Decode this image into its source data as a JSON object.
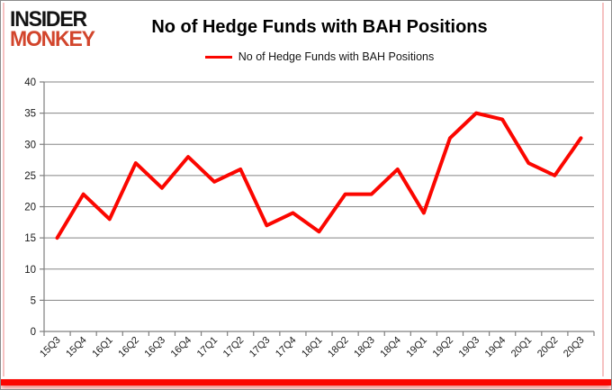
{
  "logo": {
    "line1": "INSIDER",
    "line2": "MONKEY"
  },
  "header": {
    "title": "No of Hedge Funds with BAH Positions"
  },
  "legend": {
    "label": "No of Hedge Funds with BAH Positions"
  },
  "colors": {
    "series_red": "#fb0600",
    "logo_red": "#d2452c",
    "logo_black": "#131313",
    "grid_gray": "#858585",
    "axis_gray": "#7f7f7f",
    "border_pink": "#f6c2c2",
    "bottom_bar_red": "#fb0600"
  },
  "chart_data": {
    "type": "line",
    "title": "No of Hedge Funds with BAH Positions",
    "xlabel": "",
    "ylabel": "",
    "categories": [
      "15Q3",
      "15Q4",
      "16Q1",
      "16Q2",
      "16Q3",
      "16Q4",
      "17Q1",
      "17Q2",
      "17Q3",
      "17Q4",
      "18Q1",
      "18Q2",
      "18Q3",
      "18Q4",
      "19Q1",
      "19Q2",
      "19Q3",
      "19Q4",
      "20Q1",
      "20Q2",
      "20Q3"
    ],
    "series": [
      {
        "name": "No of Hedge Funds with BAH Positions",
        "color": "#fb0600",
        "values": [
          15,
          22,
          18,
          27,
          23,
          28,
          24,
          26,
          17,
          19,
          16,
          22,
          22,
          26,
          19,
          31,
          35,
          34,
          27,
          25,
          31
        ]
      }
    ],
    "ylim": [
      0,
      40
    ],
    "ytick_step": 5,
    "grid": true,
    "legend_position": "top",
    "x_label_rotation": -45
  }
}
